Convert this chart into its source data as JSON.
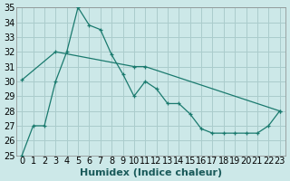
{
  "xlabel": "Humidex (Indice chaleur)",
  "xlim": [
    -0.5,
    23.5
  ],
  "ylim": [
    25,
    35
  ],
  "yticks": [
    25,
    26,
    27,
    28,
    29,
    30,
    31,
    32,
    33,
    34,
    35
  ],
  "xticks": [
    0,
    1,
    2,
    3,
    4,
    5,
    6,
    7,
    8,
    9,
    10,
    11,
    12,
    13,
    14,
    15,
    16,
    17,
    18,
    19,
    20,
    21,
    22,
    23
  ],
  "bg_color": "#cce8e8",
  "grid_color": "#aacccc",
  "line_color": "#1a7a6e",
  "line1_x": [
    0,
    1,
    2,
    3,
    4,
    5,
    6,
    7,
    8,
    9,
    10,
    11,
    12,
    13,
    14,
    15,
    16,
    17,
    18,
    19,
    20,
    21,
    22,
    23
  ],
  "line1_y": [
    25.0,
    27.0,
    27.0,
    30.0,
    32.0,
    35.0,
    33.8,
    33.5,
    31.8,
    30.5,
    29.0,
    30.0,
    29.5,
    28.5,
    28.5,
    27.8,
    26.8,
    26.5,
    26.5,
    26.5,
    26.5,
    26.5,
    27.0,
    28.0
  ],
  "line2_x": [
    0,
    3,
    10,
    11,
    23
  ],
  "line2_y": [
    30.1,
    32.0,
    31.0,
    31.0,
    28.0
  ],
  "xlabel_fontsize": 8,
  "tick_fontsize": 7
}
